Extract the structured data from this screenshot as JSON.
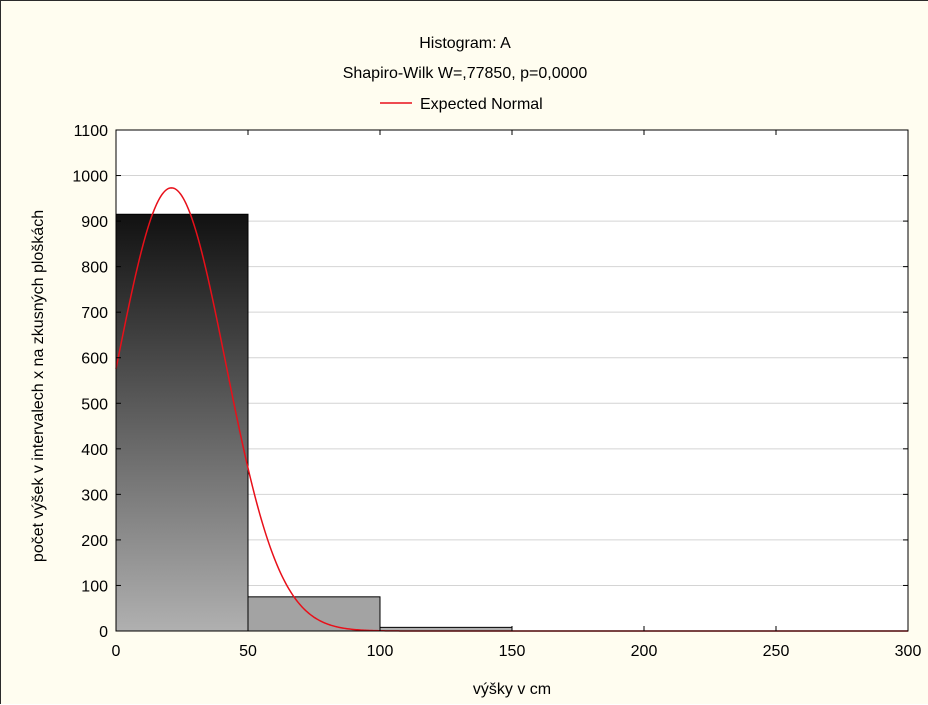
{
  "chart_data": {
    "type": "bar",
    "title": "Histogram: A",
    "subtitle": "Shapiro-Wilk W=,77850, p=0,0000",
    "legend": {
      "label": "Expected Normal",
      "color": "#e8101a",
      "placement": "top-center"
    },
    "xlabel": "výšky v cm",
    "ylabel": "počet výšek  v intervalech x na zkusných ploškách",
    "xlim": [
      0,
      300
    ],
    "ylim": [
      0,
      1100
    ],
    "xticks": [
      "0",
      "50",
      "100",
      "150",
      "200",
      "250",
      "300"
    ],
    "yticks": [
      "0",
      "100",
      "200",
      "300",
      "400",
      "500",
      "600",
      "700",
      "800",
      "900",
      "1000",
      "1100"
    ],
    "grid": true,
    "bins": [
      {
        "from": 0,
        "to": 50,
        "value": 915
      },
      {
        "from": 50,
        "to": 100,
        "value": 75
      },
      {
        "from": 100,
        "to": 150,
        "value": 8
      }
    ],
    "normal_curve": {
      "mean": 21,
      "sd": 20.5,
      "scale": 50000
    },
    "colors": {
      "bar_top": "#111111",
      "bar_bottom": "#b0b0b0",
      "curve": "#e8101a",
      "background": "#fffdf0"
    }
  }
}
